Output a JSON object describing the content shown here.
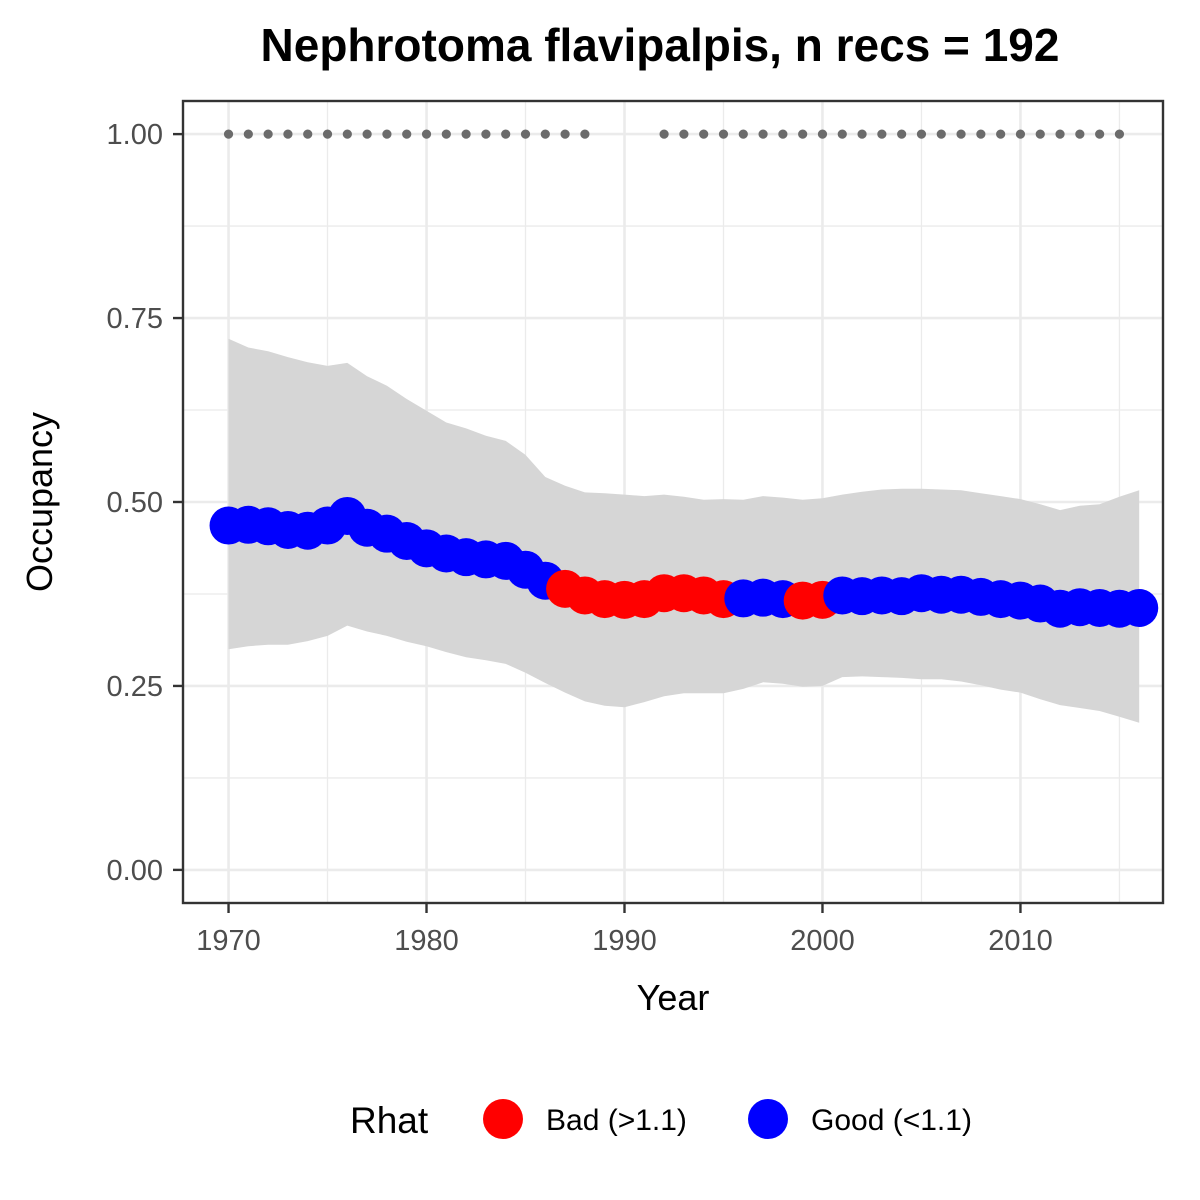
{
  "chart_data": {
    "type": "line",
    "title": "Nephrotoma flavipalpis, n recs = 192",
    "xlabel": "Year",
    "ylabel": "Occupancy",
    "xlim": [
      1967.7,
      2017.2
    ],
    "ylim": [
      -0.045,
      1.045
    ],
    "x_ticks": [
      1970,
      1980,
      1990,
      2000,
      2010
    ],
    "x_tick_labels": [
      "1970",
      "1980",
      "1990",
      "2000",
      "2010"
    ],
    "y_ticks": [
      0,
      0.25,
      0.5,
      0.75,
      1.0
    ],
    "y_tick_labels": [
      "0.00",
      "0.25",
      "0.50",
      "0.75",
      "1.00"
    ],
    "grid": true,
    "legend": {
      "title": "Rhat",
      "position": "bottom",
      "entries": [
        {
          "label": "Bad (>1.1)",
          "color": "#ff0000"
        },
        {
          "label": "Good (<1.1)",
          "color": "#0000ff"
        }
      ]
    },
    "years": [
      1970,
      1971,
      1972,
      1973,
      1974,
      1975,
      1976,
      1977,
      1978,
      1979,
      1980,
      1981,
      1982,
      1983,
      1984,
      1985,
      1986,
      1987,
      1988,
      1989,
      1990,
      1991,
      1992,
      1993,
      1994,
      1995,
      1996,
      1997,
      1998,
      1999,
      2000,
      2001,
      2002,
      2003,
      2004,
      2005,
      2006,
      2007,
      2008,
      2009,
      2010,
      2011,
      2012,
      2013,
      2014,
      2015,
      2016
    ],
    "occupancy": [
      0.468,
      0.469,
      0.467,
      0.462,
      0.461,
      0.468,
      0.481,
      0.465,
      0.457,
      0.447,
      0.437,
      0.43,
      0.425,
      0.422,
      0.42,
      0.408,
      0.393,
      0.382,
      0.373,
      0.368,
      0.367,
      0.368,
      0.376,
      0.376,
      0.373,
      0.368,
      0.369,
      0.37,
      0.368,
      0.366,
      0.367,
      0.373,
      0.372,
      0.373,
      0.372,
      0.376,
      0.374,
      0.374,
      0.371,
      0.368,
      0.366,
      0.362,
      0.355,
      0.357,
      0.356,
      0.355,
      0.356
    ],
    "upper_ci": [
      0.722,
      0.71,
      0.705,
      0.697,
      0.69,
      0.685,
      0.689,
      0.671,
      0.658,
      0.64,
      0.624,
      0.608,
      0.6,
      0.59,
      0.583,
      0.564,
      0.534,
      0.522,
      0.513,
      0.512,
      0.51,
      0.508,
      0.51,
      0.507,
      0.503,
      0.504,
      0.503,
      0.508,
      0.506,
      0.503,
      0.505,
      0.51,
      0.514,
      0.517,
      0.518,
      0.518,
      0.517,
      0.516,
      0.512,
      0.508,
      0.504,
      0.497,
      0.489,
      0.495,
      0.497,
      0.507,
      0.516
    ],
    "lower_ci": [
      0.3,
      0.304,
      0.306,
      0.306,
      0.311,
      0.318,
      0.332,
      0.324,
      0.318,
      0.31,
      0.304,
      0.296,
      0.289,
      0.285,
      0.28,
      0.268,
      0.254,
      0.241,
      0.229,
      0.223,
      0.221,
      0.228,
      0.236,
      0.24,
      0.24,
      0.24,
      0.246,
      0.255,
      0.253,
      0.249,
      0.25,
      0.262,
      0.263,
      0.262,
      0.261,
      0.259,
      0.259,
      0.256,
      0.251,
      0.245,
      0.241,
      0.232,
      0.224,
      0.22,
      0.216,
      0.208,
      0.2
    ],
    "rhat": [
      "Good",
      "Good",
      "Good",
      "Good",
      "Good",
      "Good",
      "Good",
      "Good",
      "Good",
      "Good",
      "Good",
      "Good",
      "Good",
      "Good",
      "Good",
      "Good",
      "Good",
      "Bad",
      "Bad",
      "Bad",
      "Bad",
      "Bad",
      "Bad",
      "Bad",
      "Bad",
      "Bad",
      "Good",
      "Good",
      "Good",
      "Bad",
      "Bad",
      "Good",
      "Good",
      "Good",
      "Good",
      "Good",
      "Good",
      "Good",
      "Good",
      "Good",
      "Good",
      "Good",
      "Good",
      "Good",
      "Good",
      "Good",
      "Good"
    ],
    "record_years": [
      1970,
      1971,
      1972,
      1973,
      1974,
      1975,
      1976,
      1977,
      1978,
      1979,
      1980,
      1981,
      1982,
      1983,
      1984,
      1985,
      1986,
      1987,
      1988,
      1992,
      1993,
      1994,
      1995,
      1996,
      1997,
      1998,
      1999,
      2000,
      2001,
      2002,
      2003,
      2004,
      2005,
      2006,
      2007,
      2008,
      2009,
      2010,
      2011,
      2012,
      2013,
      2014,
      2015
    ],
    "record_value": 1.0,
    "colors": {
      "ribbon": "#d6d6d6",
      "record_points": "#6b6b6b",
      "panel_border": "#333333",
      "grid": "#ebebeb"
    }
  }
}
